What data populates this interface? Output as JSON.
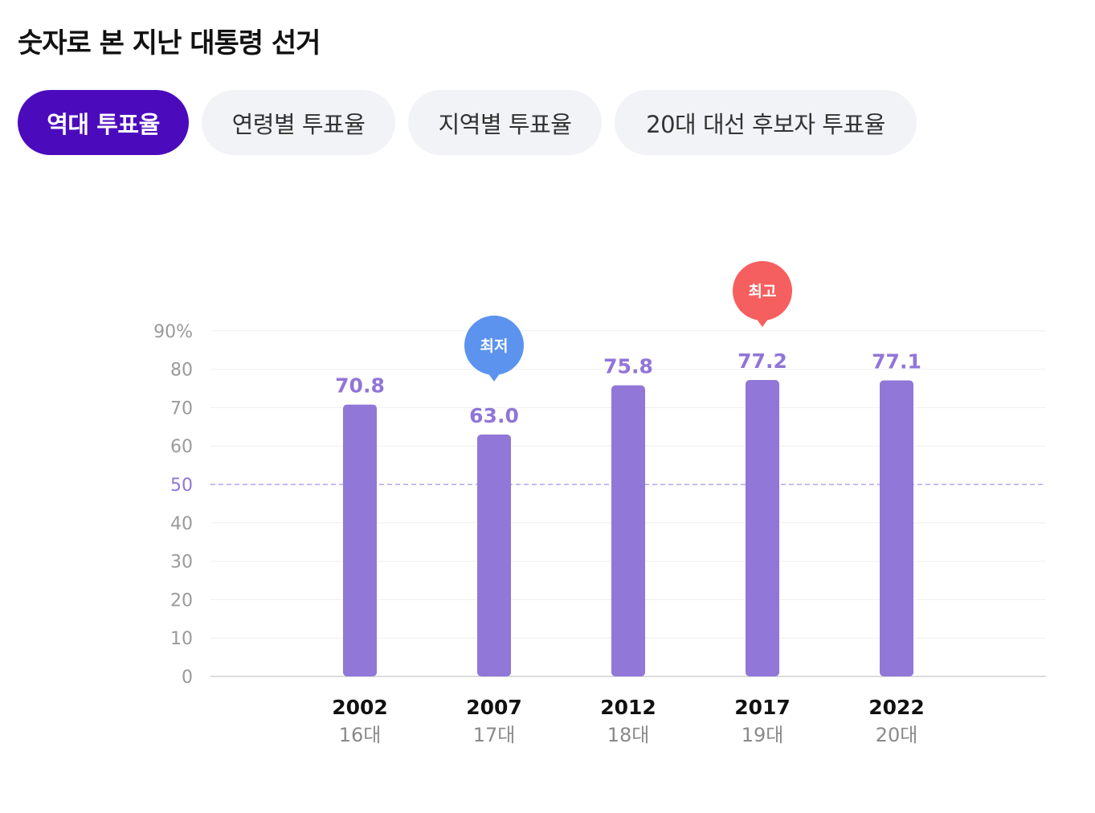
{
  "page": {
    "title": "숫자로 본 지난 대통령 선거"
  },
  "tabs": [
    {
      "label": "역대 투표율",
      "active": true
    },
    {
      "label": "연령별 투표율",
      "active": false
    },
    {
      "label": "지역별 투표율",
      "active": false
    },
    {
      "label": "20대 대선 후보자 투표율",
      "active": false
    }
  ],
  "colors": {
    "accent": "#4b0bbd",
    "bar": "#9177d8",
    "label": "#9175d8",
    "low_badge": "#5b93ee",
    "high_badge": "#f65f5f",
    "reference_line": "#b6a3ee"
  },
  "chart_data": {
    "type": "bar",
    "categories": [
      "2002",
      "2007",
      "2012",
      "2017",
      "2022"
    ],
    "sub_labels": [
      "16대",
      "17대",
      "18대",
      "19대",
      "20대"
    ],
    "values": [
      70.8,
      63.0,
      75.8,
      77.2,
      77.1
    ],
    "value_labels": [
      "70.8",
      "63.0",
      "75.8",
      "77.2",
      "77.1"
    ],
    "ylim": [
      0,
      90
    ],
    "yticks": [
      "0",
      "10",
      "20",
      "30",
      "40",
      "50",
      "60",
      "70",
      "80",
      "90%"
    ],
    "reference_line": 50,
    "grid": true,
    "annotations": [
      {
        "category_index": 1,
        "text": "최저",
        "kind": "low"
      },
      {
        "category_index": 3,
        "text": "최고",
        "kind": "high"
      }
    ]
  }
}
